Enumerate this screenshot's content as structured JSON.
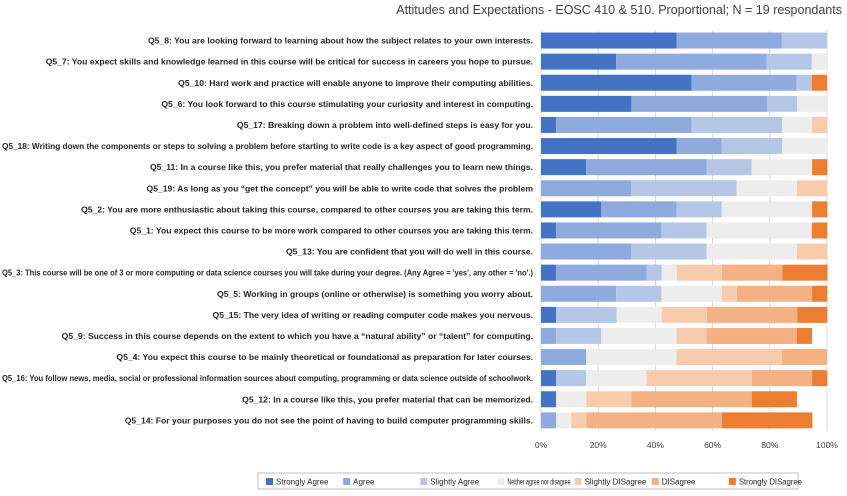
{
  "chart_data": {
    "type": "bar",
    "orientation": "horizontal",
    "stacked": "100%",
    "title": "Attitudes and Expectations - EOSC 410 & 510.   Proportional; N = 19 respondants",
    "xlim": [
      0,
      100
    ],
    "x_ticks": [
      "0%",
      "20%",
      "40%",
      "60%",
      "80%",
      "100%"
    ],
    "grid": true,
    "legend_position": "bottom",
    "categories": [
      "Q5_8: You are looking forward to learning about how the subject relates to your own interests.",
      "Q5_7: You expect skills and knowledge learned in this course will be critical for success in careers you hope to pursue.",
      "Q5_10: Hard work and practice will enable anyone to improve their computing abilities.",
      "Q5_6: You look forward to this course stimulating your curiosity and interest in computing.",
      "Q5_17: Breaking down a problem into well-defined steps is easy for you.",
      "Q5_18: Writing down the components or steps to solving a problem before starting to write code is a key aspect of good programming.",
      "Q5_11: In a course like this, you prefer material that really challenges you to learn new things.",
      "Q5_19: As long as you “get the concept” you will be able to write code that solves the problem",
      "Q5_2: You are more enthusiastic about taking this course, compared to other courses you are taking this term.",
      "Q5_1: You expect this course to be more work compared to other courses you are taking this term.",
      "Q5_13: You are confident that you will do well in this course.",
      "Q5_3: This course will be one of 3 or more computing or data science courses you will take during your degree. (Any Agree = 'yes', any other = 'no'.)",
      "Q5_5: Working in groups (online or otherwise) is something you worry about.",
      "Q5_15: The very idea of writing or reading computer code makes you nervous.",
      "Q5_9: Success in this course depends on the extent to which you have a “natural ability” or “talent” for computing.",
      "Q5_4: You expect this course to be mainly theoretical or foundational as preparation for later courses.",
      "Q5_16: You follow news, media, social or professional information sources about computing, programming or data science outside of schoolwork.",
      "Q5_12: In a course like this, you prefer material that can be memorized.",
      "Q5_14: For your purposes you do not see the point of having to build computer programming skills."
    ],
    "series": [
      {
        "name": "Strongly Agree",
        "color": "#4472C4",
        "values": [
          47.4,
          26.3,
          52.6,
          31.6,
          5.3,
          47.4,
          15.8,
          0,
          21.1,
          5.3,
          0,
          5.3,
          0,
          5.3,
          0,
          0,
          5.3,
          5.3,
          0
        ]
      },
      {
        "name": "Agree",
        "color": "#8FAADC",
        "values": [
          36.8,
          52.6,
          36.8,
          47.4,
          47.4,
          15.8,
          42.1,
          31.6,
          26.3,
          36.8,
          31.6,
          31.6,
          26.3,
          0,
          5.3,
          15.8,
          0,
          0,
          5.3
        ]
      },
      {
        "name": "Slightly Agree",
        "color": "#B4C7E7",
        "values": [
          15.8,
          15.8,
          5.3,
          10.5,
          31.6,
          21.1,
          15.8,
          36.8,
          15.8,
          15.8,
          26.3,
          5.3,
          15.8,
          21.1,
          15.8,
          0,
          10.5,
          0,
          0
        ]
      },
      {
        "name": "Neither agree nor disagree",
        "color": "#EDEDED",
        "values": [
          0,
          5.3,
          0,
          10.5,
          10.5,
          15.8,
          21.1,
          21.1,
          31.6,
          36.8,
          31.6,
          5.3,
          21.1,
          15.8,
          26.3,
          31.6,
          21.1,
          10.5,
          5.3
        ]
      },
      {
        "name": "Slightly DISagree",
        "color": "#F8CBAD",
        "values": [
          0,
          0,
          0,
          0,
          5.3,
          0,
          0,
          10.5,
          0,
          0,
          10.5,
          15.8,
          5.3,
          15.8,
          10.5,
          36.8,
          36.8,
          15.8,
          5.3
        ]
      },
      {
        "name": "DISagree",
        "color": "#F4B183",
        "values": [
          0,
          0,
          0,
          0,
          0,
          0,
          0,
          0,
          0,
          0,
          0,
          21.1,
          26.3,
          31.6,
          31.6,
          15.8,
          21.1,
          42.1,
          47.4
        ]
      },
      {
        "name": "Strongly DISagree",
        "color": "#ED7D31",
        "values": [
          0,
          0,
          5.3,
          0,
          0,
          0,
          5.3,
          0,
          5.3,
          5.3,
          0,
          15.8,
          5.3,
          10.5,
          5.3,
          0,
          5.3,
          15.8,
          31.6
        ]
      }
    ]
  }
}
